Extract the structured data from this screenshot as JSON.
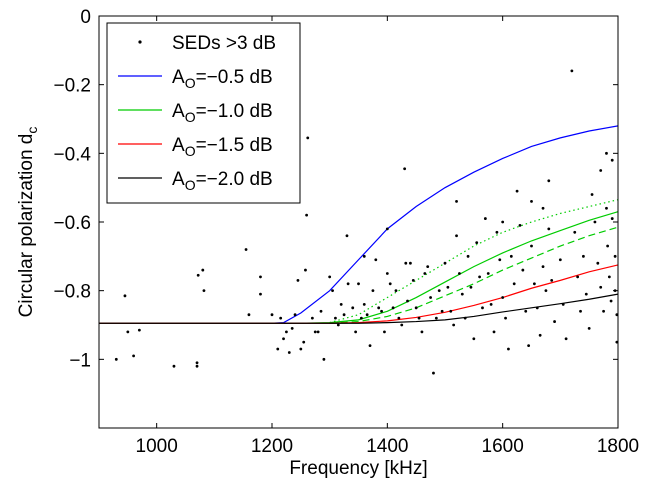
{
  "chart_data": {
    "type": "line",
    "title": "",
    "xlabel": "Frequency [kHz]",
    "ylabel_main": "Circular polarization d",
    "ylabel_sub": "c",
    "xlim": [
      900,
      1800
    ],
    "ylim": [
      -1.2,
      0
    ],
    "xticks": [
      1000,
      1200,
      1400,
      1600,
      1800
    ],
    "xtick_labels": [
      "1000",
      "1200",
      "1400",
      "1600",
      "1800"
    ],
    "yticks": [
      0,
      -0.2,
      -0.4,
      -0.6,
      -0.8,
      -1
    ],
    "ytick_labels": [
      "0",
      "−0.2",
      "−0.4",
      "−0.6",
      "−0.8",
      "−1"
    ],
    "grid": false,
    "legend_position": "top-left",
    "legend": [
      {
        "label": "SEDs >3 dB",
        "marker": "dot",
        "color": "#000000"
      },
      {
        "label_main": "A",
        "label_sub": "O",
        "label_rest": "=−0.5 dB",
        "color": "#0000ff"
      },
      {
        "label_main": "A",
        "label_sub": "O",
        "label_rest": "=−1.0 dB",
        "color": "#00cc00"
      },
      {
        "label_main": "A",
        "label_sub": "O",
        "label_rest": "=−1.5 dB",
        "color": "#ff0000"
      },
      {
        "label_main": "A",
        "label_sub": "O",
        "label_rest": "=−2.0 dB",
        "color": "#000000"
      }
    ],
    "series": [
      {
        "color": "#0000ff",
        "style": "solid",
        "x": [
          900,
          1200,
          1220,
          1250,
          1300,
          1350,
          1400,
          1450,
          1500,
          1550,
          1600,
          1650,
          1700,
          1750,
          1800
        ],
        "y": [
          -0.895,
          -0.895,
          -0.893,
          -0.865,
          -0.8,
          -0.71,
          -0.62,
          -0.555,
          -0.5,
          -0.455,
          -0.415,
          -0.38,
          -0.355,
          -0.335,
          -0.32
        ]
      },
      {
        "color": "#00cc00",
        "style": "solid",
        "x": [
          900,
          1200,
          1250,
          1300,
          1350,
          1400,
          1450,
          1500,
          1550,
          1600,
          1650,
          1700,
          1750,
          1800
        ],
        "y": [
          -0.895,
          -0.895,
          -0.895,
          -0.893,
          -0.885,
          -0.86,
          -0.82,
          -0.775,
          -0.73,
          -0.69,
          -0.655,
          -0.625,
          -0.595,
          -0.57
        ]
      },
      {
        "color": "#00cc00",
        "style": "dotted",
        "x": [
          1300,
          1350,
          1400,
          1450,
          1500,
          1550,
          1600,
          1650,
          1700,
          1750,
          1800
        ],
        "y": [
          -0.893,
          -0.87,
          -0.82,
          -0.77,
          -0.72,
          -0.67,
          -0.63,
          -0.6,
          -0.575,
          -0.555,
          -0.535
        ]
      },
      {
        "color": "#00cc00",
        "style": "dashed",
        "x": [
          1300,
          1350,
          1400,
          1450,
          1500,
          1550,
          1600,
          1650,
          1700,
          1750,
          1800
        ],
        "y": [
          -0.895,
          -0.89,
          -0.875,
          -0.85,
          -0.815,
          -0.78,
          -0.74,
          -0.705,
          -0.67,
          -0.64,
          -0.615
        ]
      },
      {
        "color": "#ff0000",
        "style": "solid",
        "x": [
          900,
          1300,
          1350,
          1400,
          1450,
          1500,
          1550,
          1600,
          1650,
          1700,
          1750,
          1800
        ],
        "y": [
          -0.895,
          -0.895,
          -0.893,
          -0.888,
          -0.878,
          -0.863,
          -0.843,
          -0.82,
          -0.793,
          -0.77,
          -0.745,
          -0.725
        ]
      },
      {
        "color": "#000000",
        "style": "solid",
        "x": [
          900,
          1350,
          1400,
          1450,
          1500,
          1550,
          1600,
          1650,
          1700,
          1750,
          1800
        ],
        "y": [
          -0.895,
          -0.895,
          -0.893,
          -0.89,
          -0.885,
          -0.875,
          -0.862,
          -0.85,
          -0.838,
          -0.825,
          -0.81
        ]
      }
    ],
    "points": [
      [
        930,
        -1.0
      ],
      [
        945,
        -0.815
      ],
      [
        950,
        -0.92
      ],
      [
        960,
        -0.99
      ],
      [
        970,
        -0.915
      ],
      [
        1030,
        -1.02
      ],
      [
        1070,
        -1.01
      ],
      [
        1070,
        -1.02
      ],
      [
        1072,
        -0.755
      ],
      [
        1080,
        -0.74
      ],
      [
        1082,
        -0.8
      ],
      [
        1155,
        -0.68
      ],
      [
        1160,
        -0.87
      ],
      [
        1180,
        -0.76
      ],
      [
        1180,
        -0.81
      ],
      [
        1200,
        -0.87
      ],
      [
        1210,
        -0.97
      ],
      [
        1215,
        -0.88
      ],
      [
        1220,
        -0.94
      ],
      [
        1225,
        -0.92
      ],
      [
        1230,
        -0.98
      ],
      [
        1235,
        -0.91
      ],
      [
        1240,
        -0.87
      ],
      [
        1245,
        -0.77
      ],
      [
        1250,
        -0.97
      ],
      [
        1255,
        -0.95
      ],
      [
        1258,
        -0.74
      ],
      [
        1260,
        -0.58
      ],
      [
        1262,
        -0.355
      ],
      [
        1270,
        -0.88
      ],
      [
        1275,
        -0.92
      ],
      [
        1280,
        -0.92
      ],
      [
        1285,
        -0.86
      ],
      [
        1290,
        -1.0
      ],
      [
        1300,
        -0.76
      ],
      [
        1305,
        -0.8
      ],
      [
        1310,
        -0.88
      ],
      [
        1315,
        -0.9
      ],
      [
        1320,
        -0.84
      ],
      [
        1325,
        -0.87
      ],
      [
        1330,
        -0.64
      ],
      [
        1332,
        -0.78
      ],
      [
        1340,
        -0.85
      ],
      [
        1345,
        -0.92
      ],
      [
        1350,
        -0.78
      ],
      [
        1355,
        -0.88
      ],
      [
        1360,
        -0.7
      ],
      [
        1360,
        -0.84
      ],
      [
        1365,
        -0.87
      ],
      [
        1370,
        -0.96
      ],
      [
        1375,
        -0.8
      ],
      [
        1380,
        -0.71
      ],
      [
        1385,
        -0.85
      ],
      [
        1390,
        -0.86
      ],
      [
        1395,
        -0.92
      ],
      [
        1400,
        -0.62
      ],
      [
        1400,
        -0.75
      ],
      [
        1405,
        -0.78
      ],
      [
        1410,
        -0.85
      ],
      [
        1415,
        -0.8
      ],
      [
        1420,
        -0.88
      ],
      [
        1425,
        -0.9
      ],
      [
        1430,
        -0.445
      ],
      [
        1432,
        -0.72
      ],
      [
        1435,
        -0.83
      ],
      [
        1440,
        -0.72
      ],
      [
        1445,
        -0.77
      ],
      [
        1450,
        -0.85
      ],
      [
        1455,
        -0.88
      ],
      [
        1460,
        -0.92
      ],
      [
        1465,
        -0.75
      ],
      [
        1470,
        -0.73
      ],
      [
        1475,
        -0.82
      ],
      [
        1480,
        -1.04
      ],
      [
        1485,
        -0.88
      ],
      [
        1490,
        -0.8
      ],
      [
        1495,
        -0.86
      ],
      [
        1500,
        -0.72
      ],
      [
        1505,
        -0.79
      ],
      [
        1510,
        -0.86
      ],
      [
        1515,
        -0.9
      ],
      [
        1520,
        -0.54
      ],
      [
        1520,
        -0.64
      ],
      [
        1525,
        -0.75
      ],
      [
        1530,
        -0.81
      ],
      [
        1535,
        -0.88
      ],
      [
        1540,
        -0.7
      ],
      [
        1545,
        -0.79
      ],
      [
        1550,
        -0.94
      ],
      [
        1555,
        -0.66
      ],
      [
        1560,
        -0.76
      ],
      [
        1565,
        -0.85
      ],
      [
        1570,
        -0.59
      ],
      [
        1575,
        -0.75
      ],
      [
        1580,
        -0.84
      ],
      [
        1585,
        -0.92
      ],
      [
        1590,
        -0.63
      ],
      [
        1595,
        -0.71
      ],
      [
        1600,
        -0.6
      ],
      [
        1600,
        -0.82
      ],
      [
        1605,
        -0.88
      ],
      [
        1610,
        -0.97
      ],
      [
        1615,
        -0.7
      ],
      [
        1620,
        -0.78
      ],
      [
        1625,
        -0.51
      ],
      [
        1630,
        -0.61
      ],
      [
        1635,
        -0.74
      ],
      [
        1640,
        -0.86
      ],
      [
        1645,
        -0.96
      ],
      [
        1650,
        -0.54
      ],
      [
        1650,
        -0.67
      ],
      [
        1655,
        -0.78
      ],
      [
        1660,
        -0.85
      ],
      [
        1665,
        -0.93
      ],
      [
        1670,
        -0.56
      ],
      [
        1670,
        -0.73
      ],
      [
        1675,
        -0.8
      ],
      [
        1680,
        -0.48
      ],
      [
        1680,
        -0.62
      ],
      [
        1685,
        -0.77
      ],
      [
        1690,
        -0.89
      ],
      [
        1700,
        -0.71
      ],
      [
        1705,
        -0.84
      ],
      [
        1710,
        -0.94
      ],
      [
        1720,
        -0.16
      ],
      [
        1725,
        -0.63
      ],
      [
        1730,
        -0.76
      ],
      [
        1735,
        -0.86
      ],
      [
        1740,
        -0.7
      ],
      [
        1745,
        -0.81
      ],
      [
        1750,
        -0.91
      ],
      [
        1755,
        -0.52
      ],
      [
        1760,
        -0.6
      ],
      [
        1765,
        -0.72
      ],
      [
        1770,
        -0.45
      ],
      [
        1770,
        -0.79
      ],
      [
        1775,
        -0.86
      ],
      [
        1780,
        -0.4
      ],
      [
        1780,
        -0.56
      ],
      [
        1782,
        -0.67
      ],
      [
        1785,
        -0.76
      ],
      [
        1788,
        -0.83
      ],
      [
        1790,
        -0.42
      ],
      [
        1790,
        -0.59
      ],
      [
        1795,
        -0.7
      ],
      [
        1795,
        -0.8
      ],
      [
        1798,
        -0.87
      ],
      [
        1798,
        -0.95
      ]
    ]
  }
}
